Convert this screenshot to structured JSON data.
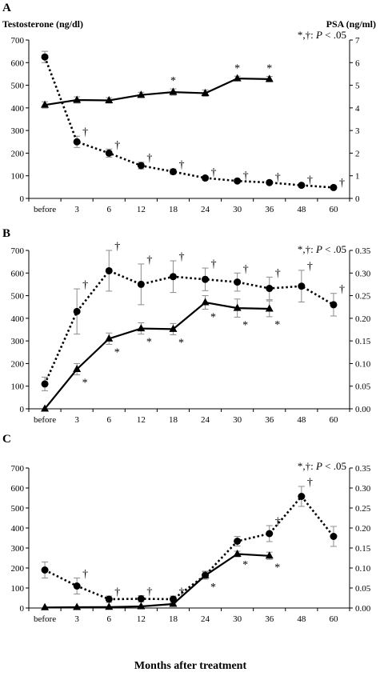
{
  "figure": {
    "left_axis_label": "Testosterone (ng/dl)",
    "right_axis_label": "PSA (ng/ml)",
    "x_axis_label": "Months after treatment",
    "sig_prefix": "*,†: ",
    "sig_p": "P",
    "sig_suffix": " < .05"
  },
  "chart_data": [
    {
      "panel": "A",
      "type": "line",
      "x": [
        "before",
        "3",
        "6",
        "12",
        "18",
        "24",
        "30",
        "36",
        "48",
        "60"
      ],
      "left_axis": {
        "label": "Testosterone (ng/dl)",
        "lim": [
          0,
          700
        ],
        "step": 100,
        "ticks": [
          "0",
          "100",
          "200",
          "300",
          "400",
          "500",
          "600",
          "700"
        ]
      },
      "right_axis": {
        "label": "PSA (ng/ml)",
        "lim": [
          0,
          7
        ],
        "step": 1,
        "ticks": [
          "0",
          "1",
          "2",
          "3",
          "4",
          "5",
          "6",
          "7"
        ]
      },
      "series": [
        {
          "axis": "left",
          "marker": "circle",
          "style": "dotted",
          "values": [
            625,
            250,
            200,
            145,
            118,
            90,
            77,
            70,
            58,
            48
          ],
          "err": [
            25,
            25,
            18,
            15,
            12,
            8,
            6,
            6,
            5,
            4
          ],
          "annot": [
            "",
            "†",
            "†",
            "†",
            "†",
            "†",
            "†",
            "†",
            "†",
            "†"
          ]
        },
        {
          "axis": "left",
          "marker": "triangle",
          "style": "solid",
          "values": [
            413,
            435,
            433,
            457,
            470,
            465,
            530,
            527,
            null,
            null
          ],
          "err": [
            14,
            14,
            12,
            12,
            14,
            14,
            10,
            12,
            null,
            null
          ],
          "annot": [
            "",
            "",
            "",
            "",
            "*",
            "",
            "*",
            "*",
            "",
            ""
          ]
        }
      ]
    },
    {
      "panel": "B",
      "type": "line",
      "x": [
        "before",
        "3",
        "6",
        "12",
        "18",
        "24",
        "30",
        "36",
        "48",
        "60"
      ],
      "left_axis": {
        "label": "",
        "lim": [
          0,
          700
        ],
        "step": 100,
        "ticks": [
          "0",
          "100",
          "200",
          "300",
          "400",
          "500",
          "600",
          "700"
        ]
      },
      "right_axis": {
        "label": "",
        "lim": [
          0,
          0.35
        ],
        "step": 0.05,
        "ticks": [
          "0.00",
          "0.05",
          "0.10",
          "0.15",
          "0.20",
          "0.25",
          "0.30",
          "0.35"
        ]
      },
      "series": [
        {
          "axis": "right",
          "marker": "circle",
          "style": "dotted",
          "values": [
            0.055,
            0.215,
            0.305,
            0.275,
            0.292,
            0.286,
            0.28,
            0.266,
            0.271,
            0.23
          ],
          "err": [
            0.015,
            0.05,
            0.045,
            0.045,
            0.035,
            0.025,
            0.02,
            0.025,
            0.035,
            0.025
          ],
          "annot": [
            "",
            "†",
            "†",
            "†",
            "†",
            "†",
            "†",
            "†",
            "†",
            "†"
          ]
        },
        {
          "axis": "left",
          "marker": "triangle",
          "style": "solid",
          "values": [
            0,
            175,
            310,
            355,
            352,
            470,
            445,
            442,
            null,
            null
          ],
          "err": [
            0,
            25,
            25,
            25,
            25,
            30,
            40,
            35,
            null,
            null
          ],
          "annot": [
            "",
            "*",
            "*",
            "*",
            "*",
            "*",
            "*",
            "*",
            "",
            ""
          ]
        }
      ]
    },
    {
      "panel": "C",
      "type": "line",
      "x": [
        "before",
        "3",
        "6",
        "12",
        "18",
        "24",
        "30",
        "36",
        "48",
        "60"
      ],
      "left_axis": {
        "label": "",
        "lim": [
          0,
          700
        ],
        "step": 100,
        "ticks": [
          "0",
          "100",
          "200",
          "300",
          "400",
          "500",
          "600",
          "700"
        ]
      },
      "right_axis": {
        "label": "",
        "lim": [
          0,
          0.35
        ],
        "step": 0.05,
        "ticks": [
          "0.00",
          "0.05",
          "0.10",
          "0.15",
          "0.20",
          "0.25",
          "0.30",
          "0.35"
        ]
      },
      "series": [
        {
          "axis": "right",
          "marker": "circle",
          "style": "dotted",
          "values": [
            0.095,
            0.055,
            0.022,
            0.023,
            0.022,
            0.082,
            0.167,
            0.186,
            0.279,
            0.179
          ],
          "err": [
            0.02,
            0.02,
            0.008,
            0.008,
            0.008,
            0.01,
            0.012,
            0.02,
            0.025,
            0.025
          ],
          "annot": [
            "",
            "†",
            "†",
            "†",
            "†",
            "",
            "",
            "†",
            "†",
            ""
          ]
        },
        {
          "axis": "left",
          "marker": "triangle",
          "style": "solid",
          "values": [
            3,
            4,
            5,
            8,
            20,
            163,
            270,
            261,
            null,
            null
          ],
          "err": [
            0,
            0,
            0,
            3,
            5,
            18,
            14,
            18,
            null,
            null
          ],
          "annot": [
            "",
            "",
            "",
            "",
            "",
            "*",
            "*",
            "*",
            "",
            ""
          ]
        }
      ]
    }
  ]
}
